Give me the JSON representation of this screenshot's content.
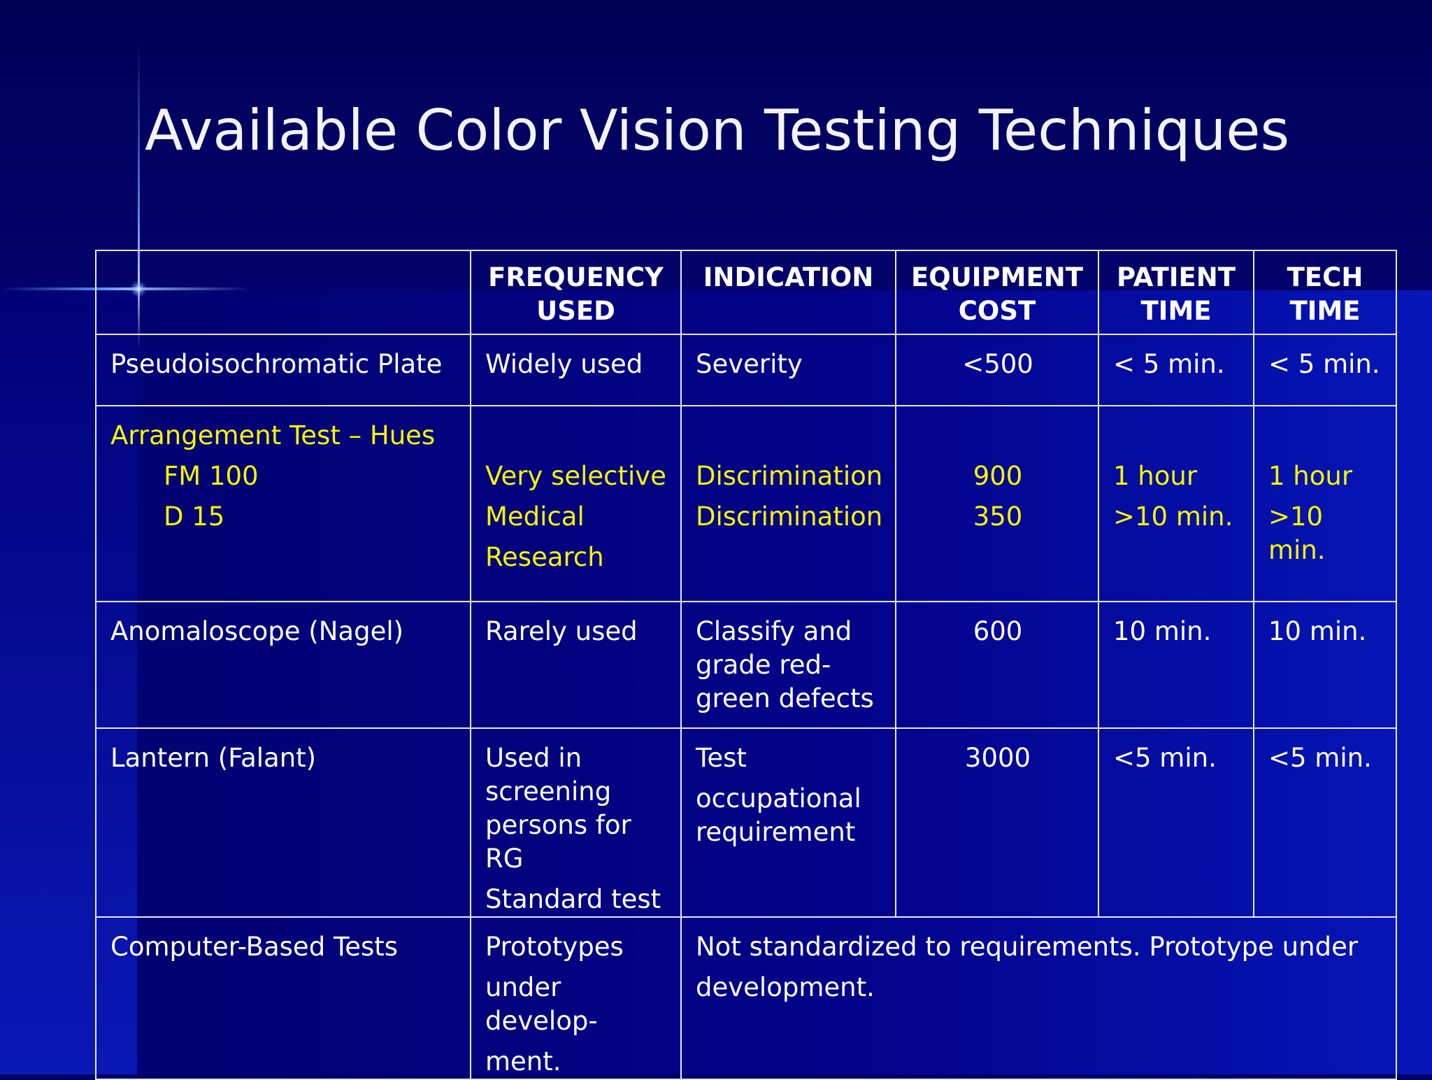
{
  "slide": {
    "title": "Available Color Vision Testing Techniques",
    "colors": {
      "background": "#01016a",
      "text": "#ffffff",
      "highlight": "#f5f500",
      "grid": "#e6e6ff"
    }
  },
  "table": {
    "headers": {
      "blank": "",
      "frequency_1": "FREQUENCY",
      "frequency_2": "USED",
      "indication": "INDICATION",
      "equipment_1": "EQUIPMENT",
      "equipment_2": "COST",
      "patient_1": "PATIENT",
      "patient_2": "TIME",
      "tech_1": "TECH",
      "tech_2": "TIME"
    },
    "pseudo": {
      "name": "Pseudoisochromatic Plate",
      "frequency": "Widely used",
      "indication": "Severity",
      "cost": "<500",
      "patient_time": "< 5 min.",
      "tech_time": "< 5 min."
    },
    "arrangement": {
      "name": "Arrangement Test – Hues",
      "sub1": "FM 100",
      "sub2": "D 15",
      "freq1": "Very selective",
      "freq2": "Medical",
      "freq3": "Research",
      "ind1": "Discrimination",
      "ind2": "Discrimination",
      "cost1": "900",
      "cost2": "350",
      "patient1": "1 hour",
      "patient2": ">10 min.",
      "tech1": "1 hour",
      "tech2": ">10 min."
    },
    "anomaloscope": {
      "name": "Anomaloscope (Nagel)",
      "frequency": "Rarely used",
      "ind1": "Classify and",
      "ind2": "grade red-",
      "ind3": "green defects",
      "cost": "600",
      "patient_time": "10 min.",
      "tech_time": "10 min."
    },
    "lantern": {
      "name": "Lantern (Falant)",
      "freq1": "Used in",
      "freq2": "screening",
      "freq3": "persons for",
      "freq4": "RG",
      "freq5": "Standard test",
      "ind1": "Test",
      "ind2": "occupational",
      "ind3": "requirement",
      "cost": "3000",
      "patient_time": "<5 min.",
      "tech_time": "<5 min."
    },
    "computer": {
      "name": "Computer-Based Tests",
      "freq1": "Prototypes",
      "freq2": "under develop-",
      "freq3": "ment.",
      "note1": "Not standardized to requirements.  Prototype under",
      "note2": "development."
    }
  }
}
